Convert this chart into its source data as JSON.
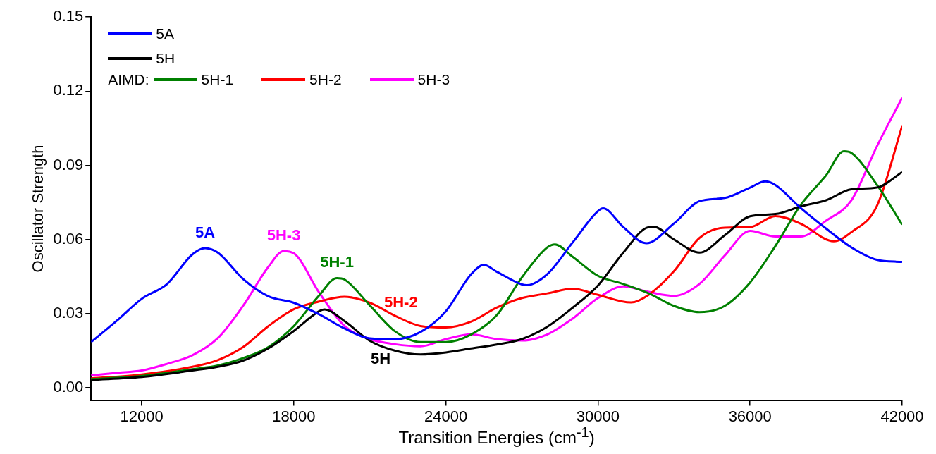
{
  "chart_data": {
    "type": "line",
    "xlabel": "Transition Energies (cm$^{-1}$)",
    "ylabel": "Oscillator Strength",
    "xlim": [
      10000,
      42000
    ],
    "xticks": [
      12000,
      18000,
      24000,
      30000,
      36000,
      42000
    ],
    "ylim": [
      -0.005,
      0.15
    ],
    "yticks": [
      {
        "value": 0,
        "label": "0.00"
      },
      {
        "value": 0.03,
        "label": "0.03"
      },
      {
        "value": 0.06,
        "label": "0.06"
      },
      {
        "value": 0.09,
        "label": "0.09"
      },
      {
        "value": 0.12,
        "label": "0.12"
      },
      {
        "value": 0.15,
        "label": "0.15"
      }
    ],
    "legend": "top left",
    "legend_title": "AIMD:",
    "series": [
      {
        "name": "5A",
        "color": "#0000ff",
        "x": [
          10000,
          11000,
          12000,
          13000,
          14000,
          14500,
          15000,
          16000,
          17000,
          18000,
          19000,
          20000,
          21000,
          22000,
          23000,
          24000,
          25000,
          25500,
          26000,
          27000,
          27200,
          28000,
          29000,
          30000,
          30200,
          31000,
          31900,
          33000,
          34000,
          35000,
          36000,
          36600,
          37000,
          38000,
          39000,
          40000,
          41000,
          42000
        ],
        "values": [
          0.0185,
          0.027,
          0.036,
          0.042,
          0.054,
          0.0565,
          0.0547,
          0.044,
          0.037,
          0.0344,
          0.0297,
          0.024,
          0.02,
          0.0197,
          0.0226,
          0.031,
          0.046,
          0.0497,
          0.047,
          0.0418,
          0.0415,
          0.046,
          0.0588,
          0.0715,
          0.0726,
          0.065,
          0.0585,
          0.0665,
          0.0755,
          0.0768,
          0.081,
          0.0835,
          0.082,
          0.0727,
          0.0644,
          0.0568,
          0.0518,
          0.0509
        ]
      },
      {
        "name": "5H",
        "color": "#000000",
        "x": [
          10000,
          12000,
          14000,
          15000,
          16000,
          17000,
          18000,
          19000,
          19200,
          20000,
          21000,
          22000,
          23000,
          24000,
          25000,
          26000,
          27000,
          28000,
          29000,
          30000,
          31000,
          32000,
          32200,
          33000,
          34000,
          35000,
          36000,
          37000,
          38000,
          39000,
          40000,
          41000,
          42000
        ],
        "values": [
          0.0032,
          0.0044,
          0.007,
          0.0085,
          0.011,
          0.016,
          0.023,
          0.031,
          0.0317,
          0.027,
          0.019,
          0.015,
          0.0135,
          0.0143,
          0.0159,
          0.0175,
          0.0197,
          0.0247,
          0.0324,
          0.0414,
          0.0547,
          0.065,
          0.0651,
          0.06,
          0.0547,
          0.0617,
          0.0694,
          0.0703,
          0.0734,
          0.0759,
          0.0803,
          0.081,
          0.0873
        ]
      },
      {
        "name": "5H-1",
        "color": "#008000",
        "x": [
          10000,
          12000,
          14000,
          15000,
          16000,
          17000,
          18000,
          19000,
          19700,
          20000,
          21000,
          22000,
          23000,
          24000,
          25000,
          26000,
          27000,
          28000,
          28300,
          29000,
          30000,
          31000,
          32000,
          33000,
          34000,
          35000,
          36000,
          37000,
          38000,
          39000,
          39700,
          40000,
          41000,
          42000
        ],
        "values": [
          0.0035,
          0.0048,
          0.0075,
          0.009,
          0.012,
          0.0165,
          0.025,
          0.0374,
          0.0444,
          0.0438,
          0.0333,
          0.0228,
          0.0185,
          0.0185,
          0.0216,
          0.0293,
          0.0447,
          0.0568,
          0.058,
          0.053,
          0.0453,
          0.042,
          0.0382,
          0.0331,
          0.0306,
          0.0331,
          0.0426,
          0.0574,
          0.074,
          0.086,
          0.0957,
          0.095,
          0.0822,
          0.066
        ]
      },
      {
        "name": "5H-2",
        "color": "#ff0000",
        "x": [
          10000,
          12000,
          14000,
          15000,
          16000,
          17000,
          18000,
          19000,
          20000,
          21000,
          22000,
          23000,
          24000,
          25000,
          26000,
          27000,
          28000,
          29000,
          30000,
          31300,
          32000,
          33000,
          34000,
          35000,
          36000,
          37000,
          38000,
          39300,
          40000,
          41000,
          42000
        ],
        "values": [
          0.0038,
          0.0054,
          0.0085,
          0.0112,
          0.0165,
          0.025,
          0.0318,
          0.0349,
          0.0368,
          0.0344,
          0.0291,
          0.025,
          0.0244,
          0.0268,
          0.0324,
          0.0363,
          0.0382,
          0.0401,
          0.0376,
          0.0345,
          0.0376,
          0.0472,
          0.0606,
          0.0648,
          0.065,
          0.0695,
          0.0664,
          0.0593,
          0.063,
          0.0735,
          0.1059
        ]
      },
      {
        "name": "5H-3",
        "color": "#ff00ff",
        "x": [
          10000,
          11000,
          12000,
          13000,
          14000,
          15000,
          16000,
          17000,
          17600,
          18000,
          19000,
          20000,
          21000,
          22000,
          23000,
          24000,
          25000,
          26000,
          27000,
          28000,
          29000,
          30000,
          31000,
          32000,
          33000,
          34000,
          35000,
          36000,
          37000,
          38000,
          39000,
          40000,
          41000,
          42000
        ],
        "values": [
          0.005,
          0.006,
          0.007,
          0.0097,
          0.0132,
          0.0201,
          0.0332,
          0.049,
          0.0553,
          0.0544,
          0.0385,
          0.025,
          0.0197,
          0.0176,
          0.0168,
          0.0197,
          0.0216,
          0.0197,
          0.0191,
          0.0216,
          0.028,
          0.0363,
          0.041,
          0.0388,
          0.0372,
          0.042,
          0.0535,
          0.0635,
          0.0612,
          0.0612,
          0.0676,
          0.0759,
          0.0976,
          0.1174
        ]
      }
    ]
  }
}
